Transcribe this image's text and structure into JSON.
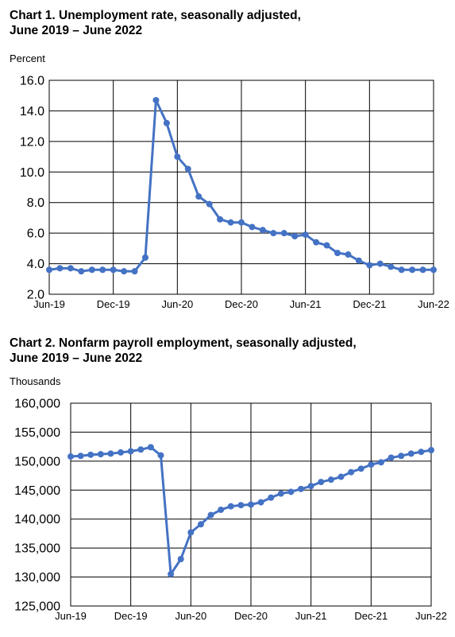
{
  "chart_data": [
    {
      "type": "line",
      "title_line1": "Chart 1. Unemployment rate, seasonally adjusted,",
      "title_line2": "June 2019 – June 2022",
      "ylabel": "Percent",
      "xlabel": "",
      "ylim": [
        2.0,
        16.0
      ],
      "y_ticks": [
        "2.0",
        "4.0",
        "6.0",
        "8.0",
        "10.0",
        "12.0",
        "14.0",
        "16.0"
      ],
      "x_tick_labels": [
        "Jun-19",
        "Dec-19",
        "Jun-20",
        "Dec-20",
        "Jun-21",
        "Dec-21",
        "Jun-22"
      ],
      "grid": true,
      "line_color": "#4472C4",
      "series": [
        {
          "values": [
            3.6,
            3.7,
            3.7,
            3.5,
            3.6,
            3.6,
            3.6,
            3.5,
            3.5,
            4.4,
            14.7,
            13.2,
            11.0,
            10.2,
            8.4,
            7.9,
            6.9,
            6.7,
            6.7,
            6.4,
            6.2,
            6.0,
            6.0,
            5.8,
            5.9,
            5.4,
            5.2,
            4.7,
            4.6,
            4.2,
            3.9,
            4.0,
            3.8,
            3.6,
            3.6,
            3.6,
            3.6
          ]
        }
      ]
    },
    {
      "type": "line",
      "title_line1": "Chart 2. Nonfarm payroll employment, seasonally adjusted,",
      "title_line2": "June 2019 – June 2022",
      "ylabel": "Thousands",
      "xlabel": "",
      "ylim": [
        125000,
        160000
      ],
      "y_ticks": [
        "125,000",
        "130,000",
        "135,000",
        "140,000",
        "145,000",
        "150,000",
        "155,000",
        "160,000"
      ],
      "x_tick_labels": [
        "Jun-19",
        "Dec-19",
        "Jun-20",
        "Dec-20",
        "Jun-21",
        "Dec-21",
        "Jun-22"
      ],
      "grid": true,
      "line_color": "#4472C4",
      "series": [
        {
          "values": [
            150800,
            150900,
            151100,
            151200,
            151300,
            151500,
            151700,
            152000,
            152400,
            151000,
            130500,
            133100,
            137700,
            139100,
            140700,
            141600,
            142200,
            142400,
            142500,
            142900,
            143700,
            144400,
            144700,
            145200,
            145700,
            146400,
            146800,
            147300,
            148100,
            148700,
            149400,
            149800,
            150600,
            150900,
            151300,
            151600,
            151900
          ]
        }
      ]
    }
  ]
}
